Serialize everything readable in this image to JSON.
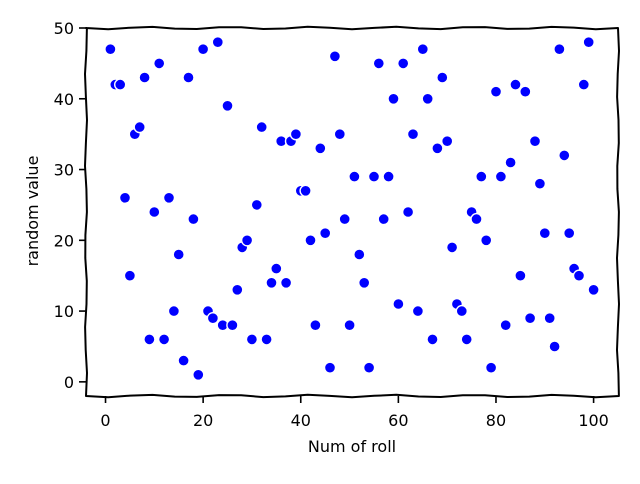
{
  "chart_data": {
    "type": "scatter",
    "title": "",
    "xlabel": "Num of roll",
    "ylabel": "random value",
    "xlim": [
      -4,
      105
    ],
    "ylim": [
      -2,
      50
    ],
    "xticks": [
      0,
      20,
      40,
      60,
      80,
      100
    ],
    "yticks": [
      0,
      10,
      20,
      30,
      40,
      50
    ],
    "grid": false,
    "marker_color": "#0000ff",
    "marker_edge_color": "#ffffff",
    "series": [
      {
        "x": [
          1,
          2,
          3,
          4,
          5,
          6,
          7,
          8,
          9,
          10,
          11,
          12,
          13,
          14,
          15,
          16,
          17,
          18,
          19,
          20,
          21,
          22,
          23,
          24,
          25,
          26,
          27,
          28,
          29,
          30,
          31,
          32,
          33,
          34,
          35,
          36,
          37,
          38,
          39,
          40,
          41,
          42,
          43,
          44,
          45,
          46,
          47,
          48,
          49,
          50,
          51,
          52,
          53,
          54,
          55,
          56,
          57,
          58,
          59,
          60,
          61,
          62,
          63,
          64,
          65,
          66,
          67,
          68,
          69,
          70,
          71,
          72,
          73,
          74,
          75,
          76,
          77,
          78,
          79,
          80,
          81,
          82,
          83,
          84,
          85,
          86,
          87,
          88,
          89,
          90,
          91,
          92,
          93,
          94,
          95,
          96,
          97,
          98,
          99,
          100
        ],
        "y": [
          47,
          42,
          42,
          26,
          15,
          35,
          36,
          43,
          6,
          24,
          45,
          6,
          26,
          10,
          18,
          3,
          43,
          23,
          1,
          47,
          10,
          9,
          48,
          8,
          39,
          8,
          13,
          19,
          20,
          6,
          25,
          36,
          6,
          14,
          16,
          34,
          14,
          34,
          35,
          27,
          27,
          20,
          8,
          33,
          21,
          2,
          46,
          35,
          23,
          8,
          29,
          18,
          14,
          2,
          29,
          45,
          23,
          29,
          40,
          11,
          45,
          24,
          35,
          10,
          47,
          40,
          6,
          33,
          43,
          34,
          19,
          11,
          10,
          6,
          24,
          23,
          29,
          20,
          2,
          41,
          29,
          8,
          31,
          42,
          15,
          41,
          9,
          34,
          28,
          21,
          9,
          5,
          47,
          32,
          21,
          16,
          15,
          42,
          48,
          13
        ]
      }
    ]
  }
}
